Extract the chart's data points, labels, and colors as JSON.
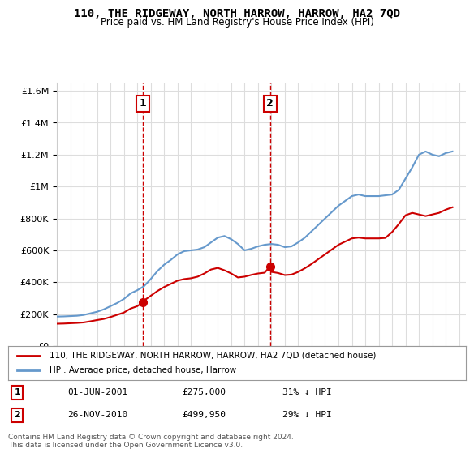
{
  "title": "110, THE RIDGEWAY, NORTH HARROW, HARROW, HA2 7QD",
  "subtitle": "Price paid vs. HM Land Registry's House Price Index (HPI)",
  "red_line_label": "110, THE RIDGEWAY, NORTH HARROW, HARROW, HA2 7QD (detached house)",
  "blue_line_label": "HPI: Average price, detached house, Harrow",
  "annotation1_label": "1",
  "annotation1_date": "01-JUN-2001",
  "annotation1_price": "£275,000",
  "annotation1_hpi": "31% ↓ HPI",
  "annotation2_label": "2",
  "annotation2_date": "26-NOV-2010",
  "annotation2_price": "£499,950",
  "annotation2_hpi": "29% ↓ HPI",
  "footer": "Contains HM Land Registry data © Crown copyright and database right 2024.\nThis data is licensed under the Open Government Licence v3.0.",
  "vline1_x": 2001.42,
  "vline2_x": 2010.9,
  "sale1_x": 2001.42,
  "sale1_y": 275000,
  "sale2_x": 2010.9,
  "sale2_y": 499950,
  "ylim": [
    0,
    1650000
  ],
  "xlim": [
    1995,
    2025.5
  ],
  "red_color": "#cc0000",
  "blue_color": "#6699cc",
  "vline_color": "#cc0000",
  "background_color": "#ffffff",
  "grid_color": "#dddddd",
  "hpi_data_x": [
    1995,
    1995.5,
    1996,
    1996.5,
    1997,
    1997.5,
    1998,
    1998.5,
    1999,
    1999.5,
    2000,
    2000.5,
    2001,
    2001.5,
    2002,
    2002.5,
    2003,
    2003.5,
    2004,
    2004.5,
    2005,
    2005.5,
    2006,
    2006.5,
    2007,
    2007.5,
    2008,
    2008.5,
    2009,
    2009.5,
    2010,
    2010.5,
    2011,
    2011.5,
    2012,
    2012.5,
    2013,
    2013.5,
    2014,
    2014.5,
    2015,
    2015.5,
    2016,
    2016.5,
    2017,
    2017.5,
    2018,
    2018.5,
    2019,
    2019.5,
    2020,
    2020.5,
    2021,
    2021.5,
    2022,
    2022.5,
    2023,
    2023.5,
    2024,
    2024.5
  ],
  "hpi_data_y": [
    185000,
    186000,
    188000,
    190000,
    195000,
    205000,
    215000,
    230000,
    250000,
    270000,
    295000,
    330000,
    350000,
    375000,
    420000,
    470000,
    510000,
    540000,
    575000,
    595000,
    600000,
    605000,
    620000,
    650000,
    680000,
    690000,
    670000,
    640000,
    600000,
    610000,
    625000,
    635000,
    640000,
    635000,
    620000,
    625000,
    650000,
    680000,
    720000,
    760000,
    800000,
    840000,
    880000,
    910000,
    940000,
    950000,
    940000,
    940000,
    940000,
    945000,
    950000,
    980000,
    1050000,
    1120000,
    1200000,
    1220000,
    1200000,
    1190000,
    1210000,
    1220000
  ],
  "red_data_x": [
    1995,
    1995.5,
    1996,
    1996.5,
    1997,
    1997.5,
    1998,
    1998.5,
    1999,
    1999.5,
    2000,
    2000.5,
    2001,
    2001.42,
    2001.5,
    2002,
    2002.5,
    2003,
    2003.5,
    2004,
    2004.5,
    2005,
    2005.5,
    2006,
    2006.5,
    2007,
    2007.5,
    2008,
    2008.5,
    2009,
    2009.5,
    2010,
    2010.5,
    2010.9,
    2011,
    2011.5,
    2012,
    2012.5,
    2013,
    2013.5,
    2014,
    2014.5,
    2015,
    2015.5,
    2016,
    2016.5,
    2017,
    2017.5,
    2018,
    2018.5,
    2019,
    2019.5,
    2020,
    2020.5,
    2021,
    2021.5,
    2022,
    2022.5,
    2023,
    2023.5,
    2024,
    2024.5
  ],
  "red_data_y": [
    140000,
    141000,
    143000,
    145000,
    148000,
    155000,
    163000,
    170000,
    182000,
    196000,
    210000,
    235000,
    250000,
    275000,
    285000,
    315000,
    345000,
    370000,
    390000,
    410000,
    420000,
    425000,
    435000,
    455000,
    480000,
    490000,
    475000,
    455000,
    430000,
    435000,
    446000,
    455000,
    460000,
    499950,
    465000,
    458000,
    445000,
    448000,
    465000,
    488000,
    515000,
    545000,
    575000,
    605000,
    635000,
    655000,
    675000,
    680000,
    675000,
    675000,
    675000,
    678000,
    715000,
    765000,
    820000,
    835000,
    825000,
    815000,
    825000,
    835000,
    855000,
    870000
  ]
}
